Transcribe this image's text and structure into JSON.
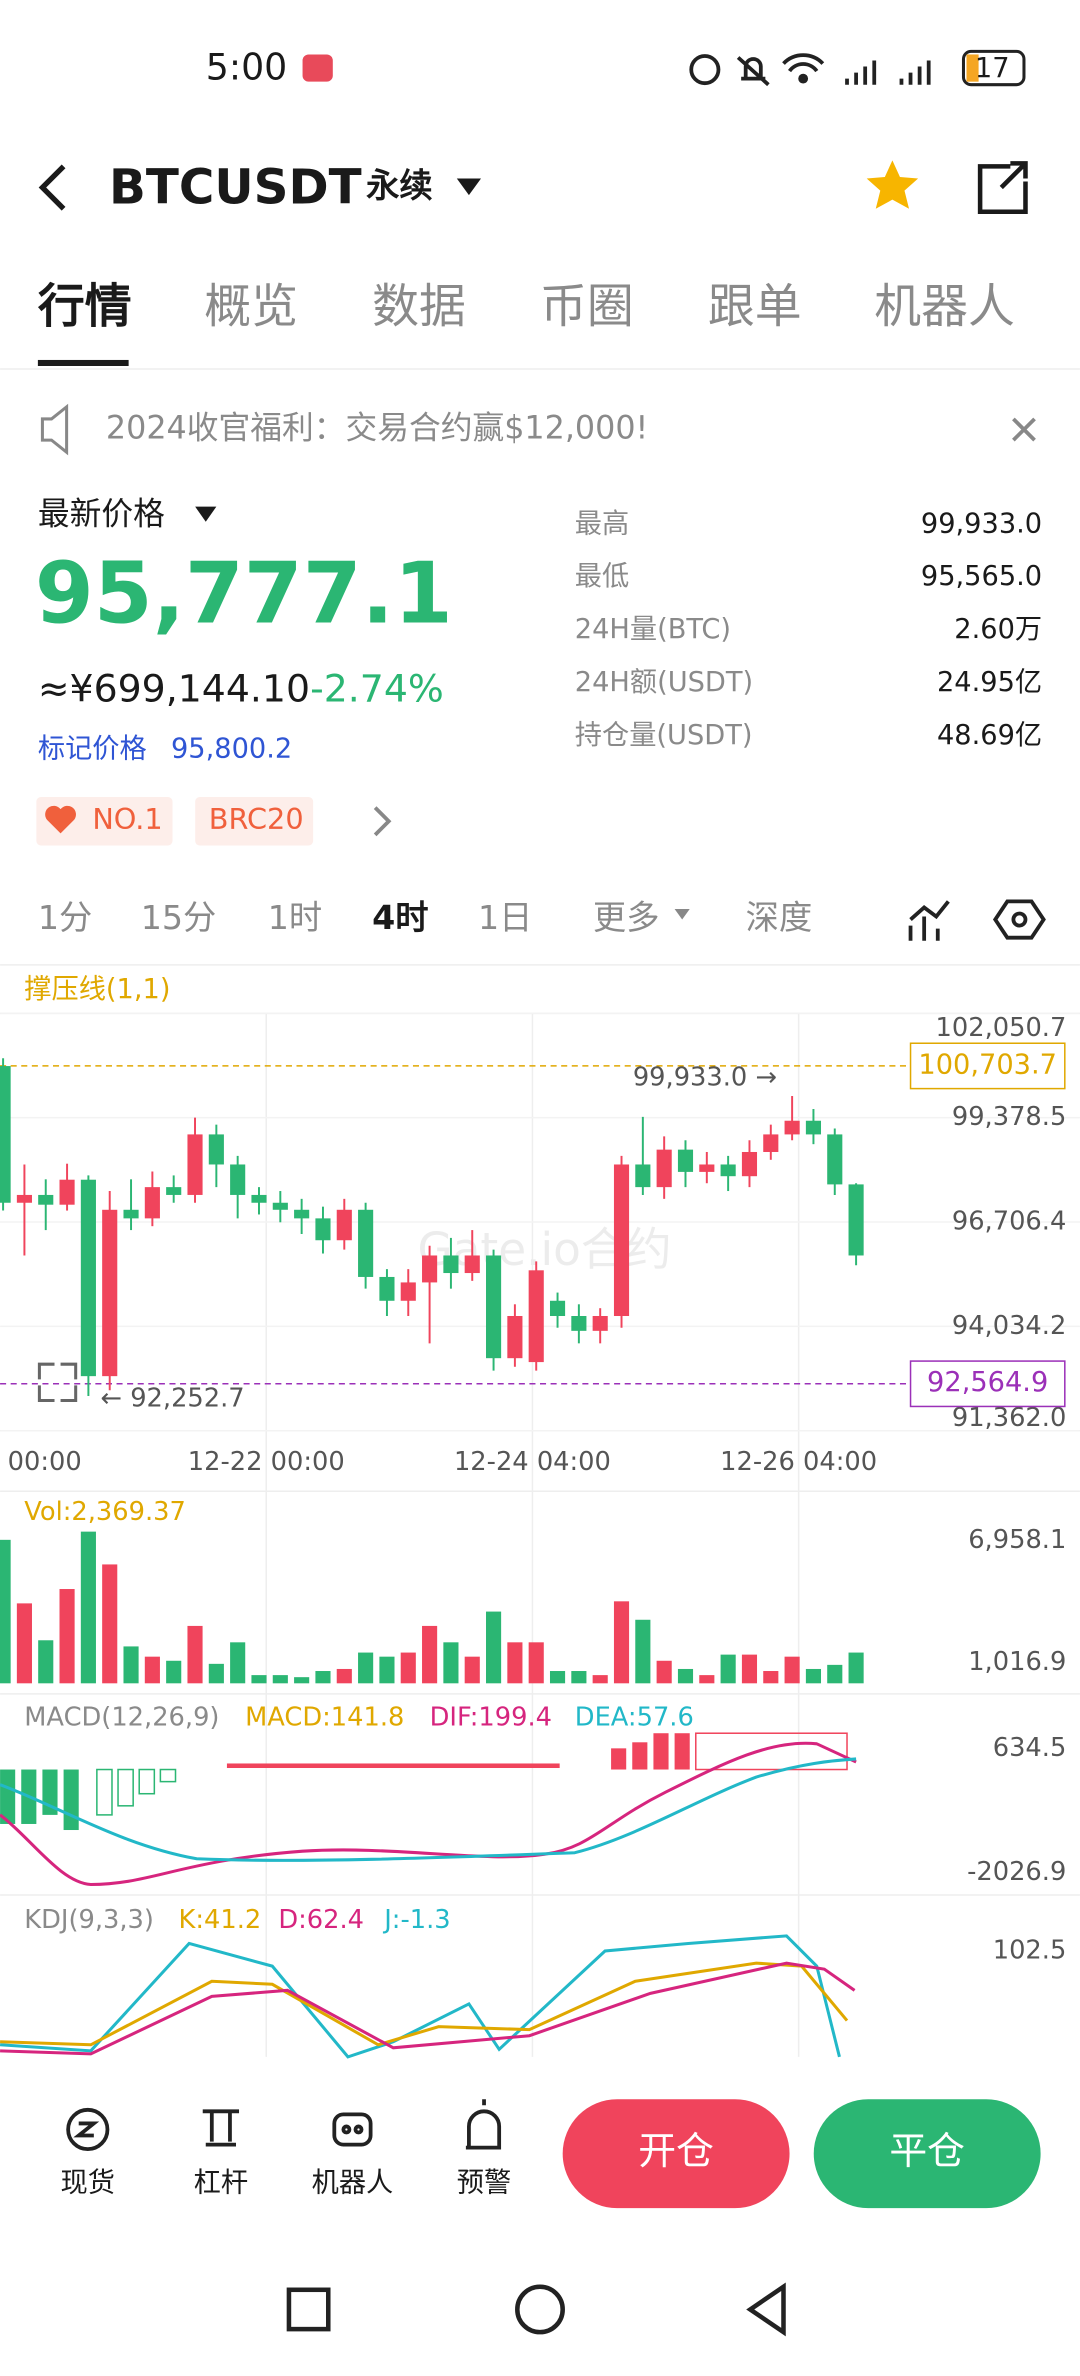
{
  "status_bar": {
    "time": "5:00",
    "battery": "17"
  },
  "header": {
    "symbol": "BTCUSDT",
    "contract": "永续"
  },
  "tabs": [
    "行情",
    "概览",
    "数据",
    "币圈",
    "跟单",
    "机器人"
  ],
  "banner": "2024收官福利：交易合约赢$12,000!",
  "price": {
    "label": "最新价格",
    "last": "95,777.1",
    "cny": "≈¥699,144.10",
    "change": "-2.74%",
    "mark_label": "标记价格",
    "mark": "95,800.2"
  },
  "stats": [
    {
      "label": "最高",
      "value": "99,933.0"
    },
    {
      "label": "最低",
      "value": "95,565.0"
    },
    {
      "label": "24H量(BTC)",
      "value": "2.60万"
    },
    {
      "label": "24H额(USDT)",
      "value": "24.95亿"
    },
    {
      "label": "持仓量(USDT)",
      "value": "48.69亿"
    }
  ],
  "tags": [
    "NO.1",
    "BRC20"
  ],
  "intervals": [
    "1分",
    "15分",
    "1时",
    "4时",
    "1日",
    "更多",
    "深度"
  ],
  "chart": {
    "indicator": "撑压线(1,1)",
    "watermark": "Gate.io合约",
    "ylim": [
      91362.0,
      102050.7
    ],
    "yticks": [
      {
        "value": 102050.7,
        "label": "102,050.7"
      },
      {
        "value": 99378.5,
        "label": "99,378.5"
      },
      {
        "value": 96706.4,
        "label": "96,706.4"
      },
      {
        "value": 94034.2,
        "label": "94,034.2"
      },
      {
        "value": 91362.0,
        "label": "91,362.0"
      }
    ],
    "resistance": {
      "value": 100703.7,
      "label": "100,703.7"
    },
    "support": {
      "value": 92564.9,
      "label": "92,564.9"
    },
    "high_marker": {
      "value": 99933.0,
      "label": "99,933.0 →"
    },
    "low_marker": {
      "value": 92252.7,
      "label": "← 92,252.7"
    },
    "xticks": [
      "00:00",
      "12-22 00:00",
      "12-24 04:00",
      "12-26 04:00"
    ],
    "colors": {
      "up": "#f0445c",
      "down": "#2bb673"
    },
    "candles": {
      "open": [
        100700,
        97200,
        97400,
        97150,
        97790,
        92760,
        97020,
        96800,
        97600,
        97400,
        98950,
        98180,
        97400,
        97200,
        97020,
        96800,
        96240,
        97020,
        95300,
        94690,
        95160,
        95850,
        95400,
        95850,
        93220,
        93120,
        94690,
        94300,
        93920,
        94300,
        98180,
        97600,
        98560,
        97990,
        98180,
        97880,
        98500,
        98950,
        99300,
        98950,
        97670
      ],
      "close": [
        97200,
        97400,
        97150,
        97790,
        92760,
        97020,
        96800,
        97600,
        97400,
        98950,
        98180,
        97400,
        97200,
        97020,
        96800,
        96240,
        97020,
        95300,
        94690,
        95160,
        95850,
        95400,
        95850,
        93220,
        94300,
        95470,
        94300,
        93920,
        94300,
        98180,
        97600,
        98560,
        97990,
        98180,
        97880,
        98500,
        98950,
        99300,
        98950,
        97670,
        95850
      ],
      "high": [
        100900,
        98180,
        97800,
        98200,
        97900,
        97500,
        97800,
        98000,
        97900,
        99380,
        99200,
        98400,
        97600,
        97500,
        97300,
        97100,
        97300,
        97200,
        95500,
        95500,
        96100,
        96300,
        96500,
        96000,
        94600,
        95700,
        94900,
        94600,
        94500,
        98400,
        99400,
        98900,
        98800,
        98500,
        98400,
        98800,
        99200,
        99933,
        99600,
        99100,
        97700
      ],
      "low": [
        97000,
        95850,
        96500,
        97000,
        92252.7,
        92400,
        96500,
        96600,
        97200,
        97200,
        97600,
        96800,
        96900,
        96700,
        96400,
        95900,
        96000,
        95000,
        94300,
        94300,
        93600,
        95000,
        95200,
        92900,
        93000,
        92900,
        94000,
        93600,
        93600,
        94000,
        97400,
        97300,
        97600,
        97700,
        97500,
        97600,
        98300,
        98800,
        98700,
        97400,
        95600
      ]
    }
  },
  "volume": {
    "label": "Vol:2,369.37",
    "ylim": [
      0,
      7600
    ],
    "yticks": [
      {
        "value": 6958.1,
        "label": "6,958.1"
      },
      {
        "value": 1016.9,
        "label": "1,016.9"
      }
    ],
    "values": [
      7000,
      3900,
      2100,
      4600,
      7400,
      5800,
      1800,
      1300,
      1100,
      2800,
      950,
      2000,
      400,
      400,
      300,
      600,
      700,
      1500,
      1300,
      1500,
      2800,
      2000,
      1300,
      3500,
      2000,
      2000,
      600,
      600,
      400,
      4000,
      3100,
      1100,
      700,
      400,
      1400,
      1400,
      600,
      1300,
      700,
      900,
      1500
    ]
  },
  "macd": {
    "label": "MACD(12,26,9)",
    "macd": "MACD:141.8",
    "dif": "DIF:199.4",
    "dea": "DEA:57.6",
    "top": "634.5",
    "bottom": "-2026.9"
  },
  "kdj": {
    "label": "KDJ(9,3,3)",
    "k": "K:41.2",
    "d": "D:62.4",
    "j": "J:-1.3",
    "top": "102.5"
  },
  "bottom_nav": {
    "items": [
      "现货",
      "杠杆",
      "机器人",
      "预警"
    ],
    "open": "开仓",
    "close": "平仓"
  }
}
